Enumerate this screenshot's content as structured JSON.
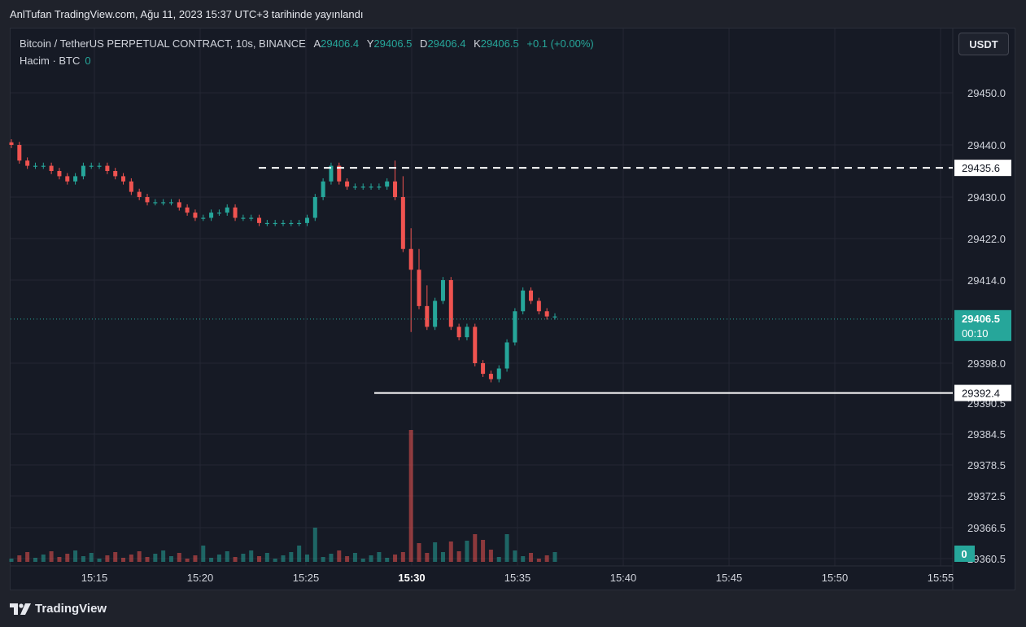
{
  "header": {
    "published_line": "AnlTufan TradingView.com, Ağu 11, 2023 15:37 UTC+3 tarihinde yayınlandı"
  },
  "legend": {
    "symbol": "Bitcoin / TetherUS PERPETUAL CONTRACT, 10s, BINANCE",
    "open_label": "A",
    "open": "29406.4",
    "high_label": "Y",
    "high": "29406.5",
    "low_label": "D",
    "low": "29406.4",
    "close_label": "K",
    "close": "29406.5",
    "change": "+0.1 (+0.00%)"
  },
  "volume_legend": {
    "label": "Hacim · BTC",
    "value": "0"
  },
  "currency_button": "USDT",
  "footer": {
    "brand": "TradingView"
  },
  "colors": {
    "up": "#26a69a",
    "down": "#ef5350",
    "background": "#161a25",
    "grid": "#242733",
    "axis_text": "#d1d4dc",
    "line": "#ffffff"
  },
  "chart_data": {
    "type": "candlestick",
    "symbol": "BTCUSDT.P",
    "interval": "10s",
    "price_axis_ticks": [
      "29450.0",
      "29440.0",
      "29430.0",
      "29422.0",
      "29414.0",
      "29398.0",
      "29390.5",
      "29384.5",
      "29378.5",
      "29372.5",
      "29366.5",
      "29360.5"
    ],
    "time_axis_ticks": [
      "15:15",
      "15:20",
      "15:25",
      "15:30",
      "15:35",
      "15:40",
      "15:45",
      "15:50",
      "15:55"
    ],
    "time_axis_bold": "15:30",
    "last_price": "29406.5",
    "countdown": "00:10",
    "volume_last": "0",
    "horizontal_lines": [
      {
        "price": 29435.6,
        "label": "29435.6",
        "style": "dashed"
      },
      {
        "price": 29392.4,
        "label": "29392.4",
        "style": "solid"
      }
    ],
    "series": [
      {
        "name": "OHLC",
        "close_trace": [
          29440,
          29437,
          29436,
          29436,
          29436,
          29435,
          29434,
          29433,
          29434,
          29436,
          29436,
          29436,
          29435,
          29434,
          29433,
          29431,
          29430,
          29429,
          29429,
          29429,
          29429,
          29428,
          29427,
          29426,
          29426,
          29427,
          29427,
          29428,
          29426,
          29426,
          29426,
          29425,
          29425,
          29425,
          29425,
          29425,
          29425,
          29426,
          29430,
          29433,
          29436,
          29433,
          29432,
          29432,
          29432,
          29432,
          29432,
          29433,
          29430,
          29420,
          29416,
          29409,
          29405,
          29410,
          29414,
          29405,
          29403,
          29405,
          29398,
          29396,
          29395,
          29397,
          29402,
          29408,
          29412,
          29410,
          29408,
          29407,
          29407
        ],
        "note": "approximate price path in USDT read from the chart"
      }
    ]
  }
}
